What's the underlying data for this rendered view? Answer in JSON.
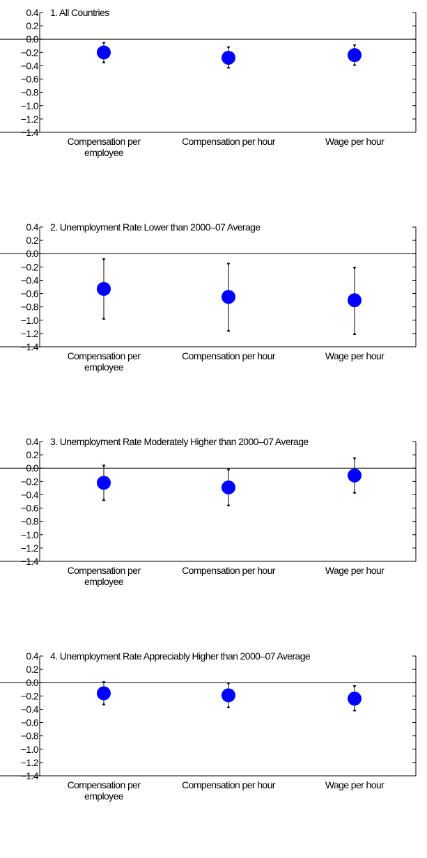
{
  "chart_data": [
    {
      "type": "scatter",
      "title": "1. All Countries",
      "categories": [
        "Compensation per employee",
        "Compensation per hour",
        "Wage per hour"
      ],
      "category_lines": [
        [
          "Compensation per",
          "employee"
        ],
        [
          "Compensation per hour"
        ],
        [
          "Wage per hour"
        ]
      ],
      "values": [
        -0.2,
        -0.28,
        -0.24
      ],
      "ci_low": [
        -0.34,
        -0.42,
        -0.38
      ],
      "ci_high": [
        -0.06,
        -0.13,
        -0.1
      ],
      "ylim": [
        -1.4,
        0.4
      ],
      "yticks": [
        "0.4",
        "0.2",
        "0.0",
        "−0.2",
        "−0.4",
        "−0.6",
        "−0.8",
        "−1.0",
        "−1.2",
        "−1.4"
      ],
      "marker_color": "#0000ff",
      "grid": false
    },
    {
      "type": "scatter",
      "title": "2. Unemployment Rate Lower than 2000–07 Average",
      "categories": [
        "Compensation per employee",
        "Compensation per hour",
        "Wage per hour"
      ],
      "category_lines": [
        [
          "Compensation per",
          "employee"
        ],
        [
          "Compensation per hour"
        ],
        [
          "Wage per hour"
        ]
      ],
      "values": [
        -0.53,
        -0.65,
        -0.7
      ],
      "ci_low": [
        -0.97,
        -1.15,
        -1.2
      ],
      "ci_high": [
        -0.09,
        -0.16,
        -0.22
      ],
      "ylim": [
        -1.4,
        0.4
      ],
      "yticks": [
        "0.4",
        "0.2",
        "0.0",
        "−0.2",
        "−0.4",
        "−0.6",
        "−0.8",
        "−1.0",
        "−1.2",
        "−1.4"
      ],
      "marker_color": "#0000ff",
      "grid": false
    },
    {
      "type": "scatter",
      "title": "3. Unemployment Rate Moderately Higher than 2000–07 Average",
      "categories": [
        "Compensation per employee",
        "Compensation per hour",
        "Wage per hour"
      ],
      "category_lines": [
        [
          "Compensation per",
          "employee"
        ],
        [
          "Compensation per hour"
        ],
        [
          "Wage per hour"
        ]
      ],
      "values": [
        -0.22,
        -0.29,
        -0.11
      ],
      "ci_low": [
        -0.47,
        -0.55,
        -0.36
      ],
      "ci_high": [
        0.03,
        -0.03,
        0.14
      ],
      "ylim": [
        -1.4,
        0.4
      ],
      "yticks": [
        "0.4",
        "0.2",
        "0.0",
        "−0.2",
        "−0.4",
        "−0.6",
        "−0.8",
        "−1.0",
        "−1.2",
        "−1.4"
      ],
      "marker_color": "#0000ff",
      "grid": false
    },
    {
      "type": "scatter",
      "title": "4. Unemployment Rate Appreciably Higher than 2000–07 Average",
      "categories": [
        "Compensation per employee",
        "Compensation per hour",
        "Wage per hour"
      ],
      "category_lines": [
        [
          "Compensation per",
          "employee"
        ],
        [
          "Compensation per hour"
        ],
        [
          "Wage per hour"
        ]
      ],
      "values": [
        -0.16,
        -0.19,
        -0.24
      ],
      "ci_low": [
        -0.32,
        -0.36,
        -0.41
      ],
      "ci_high": [
        0.0,
        -0.02,
        -0.06
      ],
      "ylim": [
        -1.4,
        0.4
      ],
      "yticks": [
        "0.4",
        "0.2",
        "0.0",
        "−0.2",
        "−0.4",
        "−0.6",
        "−0.8",
        "−1.0",
        "−1.2",
        "−1.4"
      ],
      "marker_color": "#0000ff",
      "grid": false
    }
  ]
}
